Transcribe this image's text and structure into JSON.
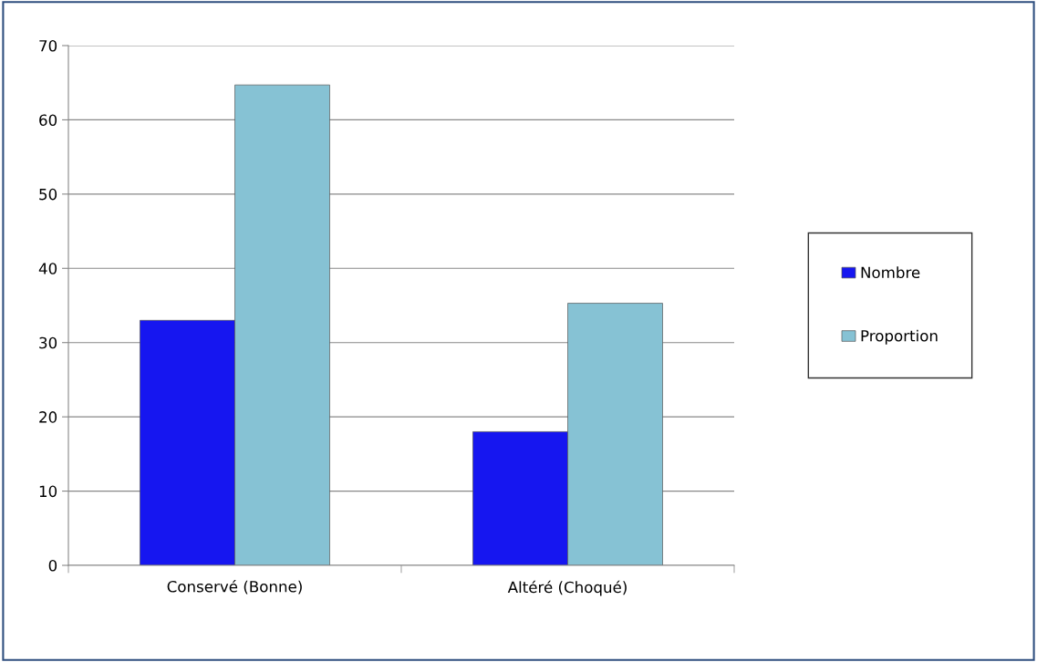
{
  "chart_data": {
    "type": "bar",
    "categories": [
      "Conservé (Bonne)",
      "Altéré (Choqué)"
    ],
    "series": [
      {
        "name": "Nombre",
        "color": "#1616f0",
        "values": [
          33,
          18
        ]
      },
      {
        "name": "Proportion",
        "color": "#86c2d4",
        "values": [
          64.7,
          35.3
        ]
      }
    ],
    "ylim": [
      0,
      70
    ],
    "yticks": [
      0,
      10,
      20,
      30,
      40,
      50,
      60,
      70
    ],
    "grid": "y",
    "legend": "right"
  }
}
